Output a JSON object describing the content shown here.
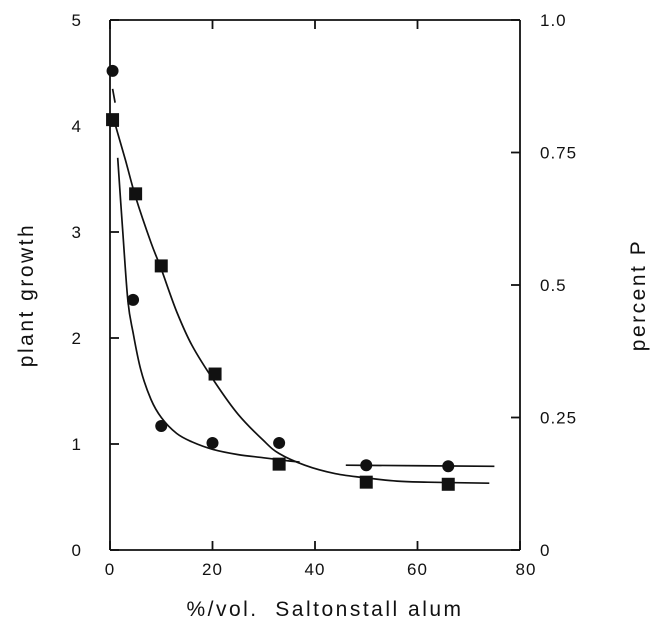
{
  "chart_data": {
    "type": "scatter",
    "title": "",
    "xlabel": "%/vol.  Saltonstall alum",
    "ylabel_left": "plant growth",
    "ylabel_right": "percent P",
    "xlim": [
      0,
      80
    ],
    "ylim_left": [
      0,
      5
    ],
    "ylim_right": [
      0,
      1.0
    ],
    "grid": false,
    "legend": "none",
    "x_ticks": [
      {
        "value": 0,
        "label": "0"
      },
      {
        "value": 20,
        "label": "20"
      },
      {
        "value": 40,
        "label": "40"
      },
      {
        "value": 60,
        "label": "60"
      },
      {
        "value": 80,
        "label": "80"
      }
    ],
    "y_left_ticks": [
      {
        "value": 0,
        "label": "0"
      },
      {
        "value": 1,
        "label": "1"
      },
      {
        "value": 2,
        "label": "2"
      },
      {
        "value": 3,
        "label": "3"
      },
      {
        "value": 4,
        "label": "4"
      },
      {
        "value": 5,
        "label": "5"
      }
    ],
    "y_right_ticks": [
      {
        "value": 0,
        "label": "0"
      },
      {
        "value": 0.25,
        "label": "0.25"
      },
      {
        "value": 0.5,
        "label": "0.5"
      },
      {
        "value": 0.75,
        "label": "0.75"
      },
      {
        "value": 1.0,
        "label": "1.0"
      }
    ],
    "series": [
      {
        "marker": "circle",
        "axis": "left",
        "points": [
          [
            0.5,
            4.52
          ],
          [
            4.5,
            2.36
          ],
          [
            10,
            1.17
          ],
          [
            20,
            1.01
          ],
          [
            33,
            1.01
          ],
          [
            50,
            0.8
          ],
          [
            66,
            0.79
          ]
        ],
        "curve": [
          [
            0.5,
            4.35
          ],
          [
            1.0,
            4.22
          ]
        ],
        "curve2": [
          [
            1.5,
            3.7
          ],
          [
            2.5,
            3.0
          ],
          [
            3.5,
            2.35
          ],
          [
            4.5,
            2.05
          ],
          [
            6,
            1.7
          ],
          [
            8,
            1.42
          ],
          [
            10,
            1.25
          ],
          [
            13,
            1.1
          ],
          [
            16,
            1.02
          ],
          [
            20,
            0.95
          ],
          [
            25,
            0.9
          ],
          [
            30,
            0.87
          ],
          [
            35,
            0.84
          ],
          [
            37,
            0.83
          ]
        ],
        "flat": [
          [
            46,
            0.8
          ],
          [
            75,
            0.79
          ]
        ]
      },
      {
        "marker": "square",
        "axis": "left",
        "points": [
          [
            0.5,
            4.06
          ],
          [
            5,
            3.36
          ],
          [
            10,
            2.68
          ],
          [
            20.5,
            1.66
          ],
          [
            33,
            0.81
          ],
          [
            50,
            0.64
          ],
          [
            66,
            0.62
          ]
        ],
        "curve": [
          [
            0.5,
            4.1
          ],
          [
            3,
            3.68
          ],
          [
            5,
            3.33
          ],
          [
            8,
            2.9
          ],
          [
            10,
            2.65
          ],
          [
            13,
            2.25
          ],
          [
            16,
            1.93
          ],
          [
            20.5,
            1.58
          ],
          [
            25,
            1.28
          ],
          [
            30,
            1.03
          ],
          [
            33,
            0.91
          ],
          [
            38,
            0.8
          ],
          [
            44,
            0.72
          ],
          [
            50,
            0.68
          ],
          [
            56,
            0.65
          ],
          [
            62,
            0.64
          ],
          [
            74,
            0.63
          ]
        ]
      }
    ]
  }
}
